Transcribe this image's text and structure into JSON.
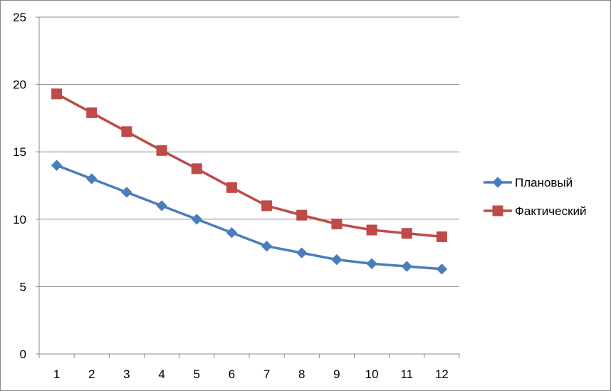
{
  "chart_data": {
    "type": "line",
    "title": "",
    "xlabel": "",
    "ylabel": "",
    "categories": [
      "1",
      "2",
      "3",
      "4",
      "5",
      "6",
      "7",
      "8",
      "9",
      "10",
      "11",
      "12"
    ],
    "ylim": [
      0,
      25
    ],
    "yticks": [
      0,
      5,
      10,
      15,
      20,
      25
    ],
    "grid": "horizontal",
    "legend_position": "right",
    "series": [
      {
        "name": "Плановый",
        "color": "#4A7EBB",
        "marker": "diamond",
        "values": [
          14.0,
          13.0,
          12.0,
          11.0,
          10.0,
          9.0,
          8.0,
          7.5,
          7.0,
          6.7,
          6.5,
          6.3
        ]
      },
      {
        "name": "Фактический",
        "color": "#BE4B48",
        "marker": "square",
        "values": [
          19.3,
          17.9,
          16.5,
          15.1,
          13.75,
          12.35,
          11.0,
          10.3,
          9.65,
          9.2,
          8.95,
          8.7
        ]
      }
    ]
  }
}
